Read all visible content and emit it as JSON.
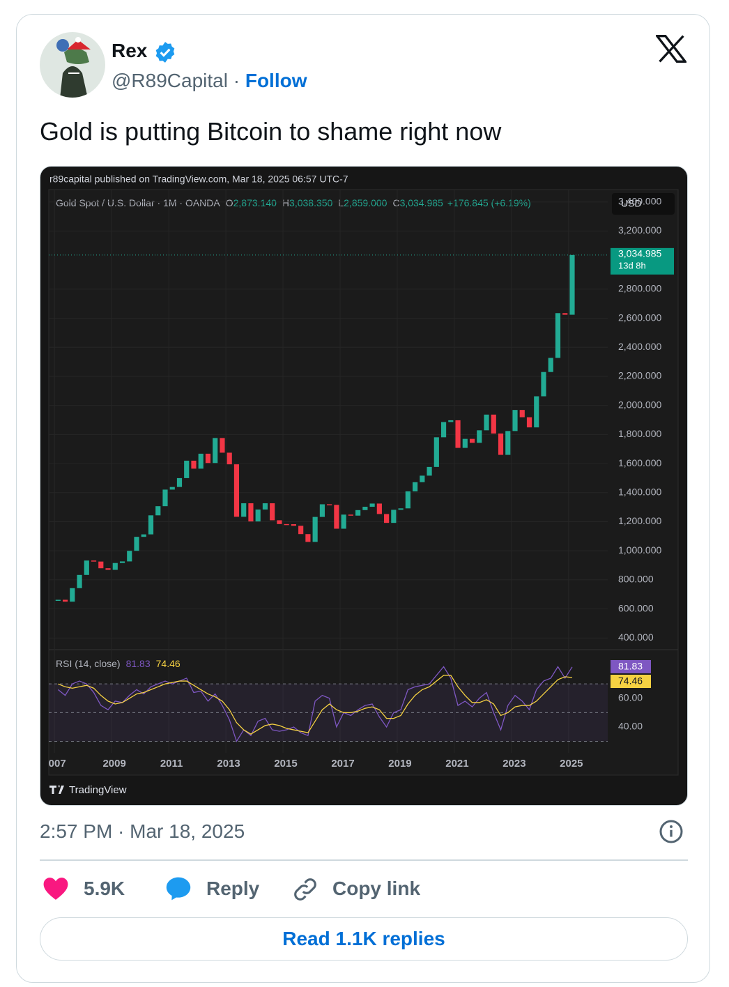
{
  "tweet": {
    "name": "Rex",
    "handle": "@R89Capital",
    "separator": "·",
    "follow": "Follow",
    "text": "Gold is putting Bitcoin to shame right now",
    "timestamp": "2:57 PM · Mar 18, 2025",
    "likes": "5.9K",
    "reply": "Reply",
    "copy_link": "Copy link",
    "read_replies": "Read 1.1K replies"
  },
  "chart_data": {
    "type": "candlestick",
    "source_note": "r89capital published on TradingView.com, Mar 18, 2025 06:57 UTC-7",
    "symbol": "Gold Spot / U.S. Dollar · 1M · OANDA",
    "ohlc": [
      {
        "label": "O",
        "value": "2,873.140"
      },
      {
        "label": "H",
        "value": "3,038.350"
      },
      {
        "label": "L",
        "value": "2,859.000"
      },
      {
        "label": "C",
        "value": "3,034.985"
      }
    ],
    "change": "+176.845 (+6.19%)",
    "currency": "USD",
    "last_price_label": "3,034.985",
    "countdown": "13d 8h",
    "brand": "TradingView",
    "x": [
      2007.125,
      2007.375,
      2007.625,
      2007.875,
      2008.125,
      2008.375,
      2008.625,
      2008.875,
      2009.125,
      2009.375,
      2009.625,
      2009.875,
      2010.125,
      2010.375,
      2010.625,
      2010.875,
      2011.125,
      2011.375,
      2011.625,
      2011.875,
      2012.125,
      2012.375,
      2012.625,
      2012.875,
      2013.125,
      2013.375,
      2013.625,
      2013.875,
      2014.125,
      2014.375,
      2014.625,
      2014.875,
      2015.125,
      2015.375,
      2015.625,
      2015.875,
      2016.125,
      2016.375,
      2016.625,
      2016.875,
      2017.125,
      2017.375,
      2017.625,
      2017.875,
      2018.125,
      2018.375,
      2018.625,
      2018.875,
      2019.125,
      2019.375,
      2019.625,
      2019.875,
      2020.125,
      2020.375,
      2020.625,
      2020.875,
      2021.125,
      2021.375,
      2021.625,
      2021.875,
      2022.125,
      2022.375,
      2022.625,
      2022.875,
      2023.125,
      2023.375,
      2023.625,
      2023.875,
      2024.125,
      2024.375,
      2024.625,
      2024.875,
      2025.125
    ],
    "series": [
      {
        "color_up": "#22ab94",
        "color_down": "#f23645",
        "values": [
          663,
          650,
          743,
          834,
          933,
          926,
          880,
          869,
          916,
          927,
          1000,
          1096,
          1113,
          1244,
          1307,
          1421,
          1439,
          1500,
          1620,
          1565,
          1668,
          1604,
          1776,
          1675,
          1595,
          1234,
          1327,
          1202,
          1284,
          1327,
          1210,
          1184,
          1183,
          1172,
          1115,
          1061,
          1233,
          1320,
          1316,
          1152,
          1249,
          1242,
          1280,
          1303,
          1325,
          1253,
          1192,
          1282,
          1292,
          1409,
          1472,
          1517,
          1577,
          1781,
          1886,
          1898,
          1708,
          1770,
          1743,
          1829,
          1937,
          1807,
          1660,
          1824,
          1969,
          1919,
          1849,
          2063,
          2230,
          2327,
          2635,
          2624,
          3034.985
        ]
      }
    ],
    "xlim": [
      2006.8,
      2026.37
    ],
    "xticks": [
      {
        "value": 2007,
        "label": "007"
      },
      2009,
      2011,
      2013,
      2015,
      2017,
      2019,
      2021,
      2023,
      2025
    ],
    "ylim": [
      320,
      3485
    ],
    "yticks": [
      {
        "value": 400,
        "label": "400.000"
      },
      {
        "value": 600,
        "label": "600.000"
      },
      {
        "value": 800,
        "label": "800.000"
      },
      {
        "value": 1000,
        "label": "1,000.000"
      },
      {
        "value": 1200,
        "label": "1,200.000"
      },
      {
        "value": 1400,
        "label": "1,400.000"
      },
      {
        "value": 1600,
        "label": "1,600.000"
      },
      {
        "value": 1800,
        "label": "1,800.000"
      },
      {
        "value": 2000,
        "label": "2,000.000"
      },
      {
        "value": 2200,
        "label": "2,200.000"
      },
      {
        "value": 2400,
        "label": "2,400.000"
      },
      {
        "value": 2600,
        "label": "2,600.000"
      },
      {
        "value": 2800,
        "label": "2,800.000"
      },
      {
        "value": 3200,
        "label": "3,200.000"
      },
      {
        "value": 3400,
        "label": "3,400.000"
      }
    ],
    "rsi": {
      "title": "RSI (14, close)",
      "ylim": [
        22,
        90
      ],
      "yticks": [
        {
          "value": 40,
          "label": "40.00"
        },
        {
          "value": 60,
          "label": "60.00"
        }
      ],
      "levels": [
        30,
        50,
        70
      ],
      "series": [
        {
          "color": "#7e57c2",
          "values": [
            66,
            62,
            70,
            72,
            70,
            64,
            55,
            52,
            58,
            57,
            62,
            66,
            63,
            68,
            70,
            72,
            70,
            72,
            74,
            64,
            65,
            58,
            63,
            55,
            45,
            30,
            38,
            34,
            44,
            46,
            38,
            37,
            38,
            40,
            36,
            34,
            58,
            62,
            60,
            40,
            50,
            48,
            52,
            55,
            56,
            47,
            40,
            50,
            52,
            66,
            68,
            69,
            70,
            76,
            82,
            74,
            55,
            58,
            54,
            60,
            64,
            50,
            38,
            55,
            62,
            58,
            52,
            66,
            72,
            74,
            82,
            74,
            81.83
          ]
        },
        {
          "color": "#f5d142",
          "values": [
            70,
            68,
            67,
            68,
            69,
            67,
            62,
            58,
            56,
            57,
            60,
            63,
            64,
            66,
            68,
            70,
            71,
            72,
            72,
            69,
            66,
            63,
            61,
            58,
            52,
            43,
            38,
            35,
            38,
            41,
            42,
            41,
            39,
            38,
            37,
            36,
            44,
            52,
            56,
            52,
            50,
            50,
            51,
            53,
            54,
            52,
            46,
            46,
            48,
            56,
            62,
            66,
            68,
            72,
            76,
            76,
            68,
            62,
            57,
            57,
            59,
            56,
            48,
            50,
            54,
            55,
            55,
            58,
            63,
            68,
            73,
            75,
            74.46
          ]
        }
      ]
    }
  }
}
